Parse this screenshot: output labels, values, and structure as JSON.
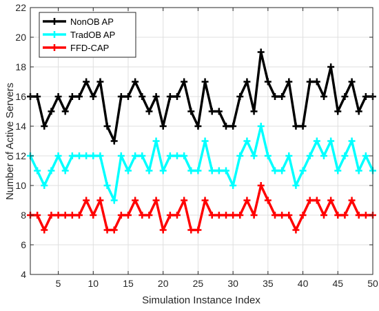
{
  "chart_data": {
    "type": "line",
    "title": "",
    "xlabel": "Simulation Instance Index",
    "ylabel": "Number of Active Servers",
    "xlim": [
      1,
      50
    ],
    "ylim": [
      4,
      22
    ],
    "xticks": [
      5,
      10,
      15,
      20,
      25,
      30,
      35,
      40,
      45,
      50
    ],
    "yticks": [
      4,
      6,
      8,
      10,
      12,
      14,
      16,
      18,
      20,
      22
    ],
    "grid": true,
    "legend_position": "top-left",
    "x": [
      1,
      2,
      3,
      4,
      5,
      6,
      7,
      8,
      9,
      10,
      11,
      12,
      13,
      14,
      15,
      16,
      17,
      18,
      19,
      20,
      21,
      22,
      23,
      24,
      25,
      26,
      27,
      28,
      29,
      30,
      31,
      32,
      33,
      34,
      35,
      36,
      37,
      38,
      39,
      40,
      41,
      42,
      43,
      44,
      45,
      46,
      47,
      48,
      49,
      50
    ],
    "series": [
      {
        "name": "NonOB AP",
        "color": "#000000",
        "marker": "plus",
        "values": [
          16,
          16,
          14,
          15,
          16,
          15,
          16,
          16,
          17,
          16,
          17,
          14,
          13,
          16,
          16,
          17,
          16,
          15,
          16,
          14,
          16,
          16,
          17,
          15,
          14,
          17,
          15,
          15,
          14,
          14,
          16,
          17,
          15,
          19,
          17,
          16,
          16,
          17,
          14,
          14,
          17,
          17,
          16,
          18,
          15,
          16,
          17,
          15,
          16,
          16
        ]
      },
      {
        "name": "TradOB AP",
        "color": "#00ffff",
        "marker": "plus",
        "values": [
          12,
          11,
          10,
          11,
          12,
          11,
          12,
          12,
          12,
          12,
          12,
          10,
          9,
          12,
          11,
          12,
          12,
          11,
          13,
          11,
          12,
          12,
          12,
          11,
          11,
          13,
          11,
          11,
          11,
          10,
          12,
          13,
          12,
          14,
          12,
          11,
          11,
          12,
          10,
          11,
          12,
          13,
          12,
          13,
          11,
          12,
          13,
          11,
          12,
          11
        ]
      },
      {
        "name": "FFD-CAP",
        "color": "#ff0000",
        "marker": "plus",
        "values": [
          8,
          8,
          7,
          8,
          8,
          8,
          8,
          8,
          9,
          8,
          9,
          7,
          7,
          8,
          8,
          9,
          8,
          8,
          9,
          7,
          8,
          8,
          9,
          7,
          7,
          9,
          8,
          8,
          8,
          8,
          8,
          9,
          8,
          10,
          9,
          8,
          8,
          8,
          7,
          8,
          9,
          9,
          8,
          9,
          8,
          8,
          9,
          8,
          8,
          8
        ]
      }
    ]
  }
}
